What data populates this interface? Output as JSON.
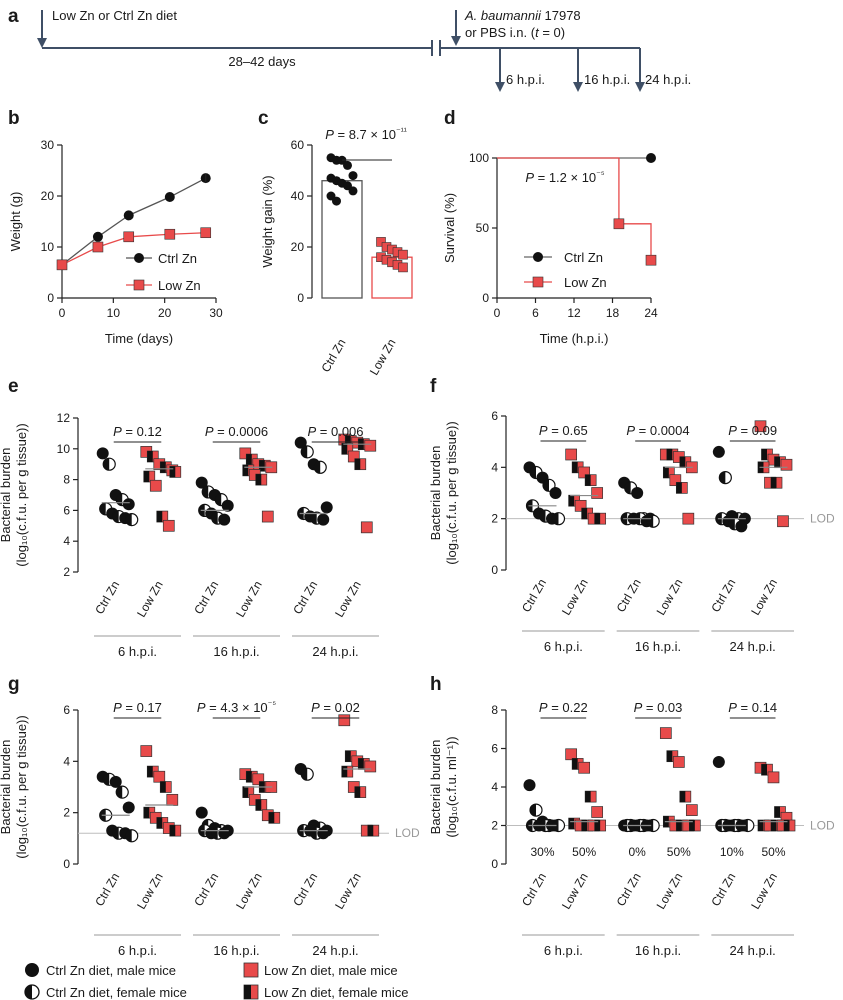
{
  "colors": {
    "ctrl": "#111111",
    "low": "#e84a4a",
    "grey": "#bdbdbd",
    "timeline": "#3f4f66",
    "lod_text": "#999999"
  },
  "panel_a": {
    "label": "a",
    "diet": "Low Zn or Ctrl Zn diet",
    "duration": "28–42 days",
    "infection_species": "A. baumannii",
    "infection_strain": " 17978",
    "infection_line2": "or PBS i.n. (",
    "infection_t": "t",
    "infection_end": " = 0)",
    "timepoints": [
      "6 h.p.i.",
      "16 h.p.i.",
      "24 h.p.i."
    ]
  },
  "groups": [
    "6 h.p.i.",
    "16 h.p.i.",
    "24 h.p.i."
  ],
  "xcats": [
    "Ctrl Zn",
    "Low Zn"
  ],
  "lod_label": "LOD",
  "legend": {
    "ctrl_male": "Ctrl Zn diet, male mice",
    "ctrl_female": "Ctrl Zn diet, female mice",
    "low_male": "Low Zn diet, male mice",
    "low_female": "Low Zn diet, female mice"
  },
  "chart_data": [
    {
      "panel": "b",
      "type": "line",
      "xlabel": "Time (days)",
      "ylabel": "Weight (g)",
      "xlim": [
        0,
        30
      ],
      "ylim": [
        0,
        30
      ],
      "xticks": [
        0,
        10,
        20,
        30
      ],
      "yticks": [
        0,
        10,
        20,
        30
      ],
      "series": [
        {
          "name": "Ctrl Zn",
          "x": [
            0,
            7,
            13,
            21,
            28
          ],
          "y": [
            6.5,
            12,
            16.2,
            19.8,
            23.5
          ]
        },
        {
          "name": "Low Zn",
          "x": [
            0,
            7,
            13,
            21,
            28
          ],
          "y": [
            6.5,
            10,
            12,
            12.5,
            12.8
          ]
        }
      ]
    },
    {
      "panel": "c",
      "type": "bar",
      "ylabel": "Weight gain (%)",
      "ylim": [
        0,
        60
      ],
      "yticks": [
        0,
        20,
        40,
        60
      ],
      "categories": [
        "Ctrl Zn",
        "Low Zn"
      ],
      "values": [
        46,
        16
      ],
      "pvalue": "P = 8.7 × 10⁻¹¹",
      "points": [
        [
          55,
          54,
          54,
          52,
          48,
          47,
          46,
          45,
          44,
          42,
          40,
          38
        ],
        [
          22,
          20,
          19,
          18,
          17,
          16,
          15,
          14,
          13,
          12
        ]
      ]
    },
    {
      "panel": "d",
      "type": "line",
      "xlabel": "Time (h.p.i.)",
      "ylabel": "Survival (%)",
      "xlim": [
        0,
        24
      ],
      "ylim": [
        0,
        100
      ],
      "xticks": [
        0,
        6,
        12,
        18,
        24
      ],
      "yticks": [
        0,
        50,
        100
      ],
      "pvalue": "P = 1.2 × 10⁻⁵",
      "series": [
        {
          "name": "Ctrl Zn",
          "x": [
            24
          ],
          "y": [
            100
          ]
        },
        {
          "name": "Low Zn",
          "x": [
            19,
            24
          ],
          "y": [
            53,
            27
          ]
        }
      ]
    },
    {
      "panel": "e",
      "type": "scatter",
      "ylabel": "Bacterial burden",
      "ylabel2": "(log₁₀(c.f.u. per g tissue))",
      "ylim": [
        2,
        12
      ],
      "yticks": [
        2,
        4,
        6,
        8,
        10,
        12
      ],
      "lod": null,
      "pvalues": [
        "P = 0.12",
        "P = 0.0006",
        "P = 0.006"
      ],
      "medians": [
        [
          6.5,
          8.7
        ],
        [
          6.0,
          8.8
        ],
        [
          5.8,
          10.3
        ]
      ],
      "points": [
        {
          "ctrl": [
            9.7,
            9.0,
            7.0,
            6.7,
            6.4,
            6.1,
            5.8,
            5.6,
            5.5,
            5.4
          ],
          "low": [
            9.8,
            9.5,
            9.0,
            8.8,
            8.6,
            8.2,
            7.6,
            5.6,
            5.0,
            8.5
          ]
        },
        {
          "ctrl": [
            7.8,
            7.2,
            7.0,
            6.7,
            6.3,
            6.0,
            5.8,
            5.5,
            5.4
          ],
          "low": [
            9.7,
            9.3,
            9.0,
            8.9,
            8.8,
            8.6,
            8.3,
            8.0,
            5.6
          ]
        },
        {
          "ctrl": [
            10.4,
            9.8,
            9.0,
            8.8,
            6.2,
            5.8,
            5.6,
            5.5,
            5.4
          ],
          "low": [
            10.6,
            10.5,
            10.4,
            10.3,
            10.2,
            10.0,
            9.5,
            9.0,
            4.9
          ]
        }
      ]
    },
    {
      "panel": "f",
      "type": "scatter",
      "ylabel": "Bacterial burden",
      "ylabel2": "(log₁₀(c.f.u. per g tissue))",
      "ylim": [
        0,
        6
      ],
      "yticks": [
        0,
        2,
        4,
        6
      ],
      "lod": 2,
      "pvalues": [
        "P = 0.65",
        "P = 0.0004",
        "P = 0.09"
      ],
      "medians": [
        [
          2.5,
          2.9
        ],
        [
          2.0,
          4.0
        ],
        [
          2.0,
          4.0
        ]
      ],
      "points": [
        {
          "ctrl": [
            4.0,
            3.8,
            3.6,
            3.3,
            3.0,
            2.5,
            2.2,
            2.1,
            2.0,
            2.0
          ],
          "low": [
            4.5,
            4.0,
            3.8,
            3.5,
            3.0,
            2.7,
            2.5,
            2.2,
            2.0,
            2.0
          ]
        },
        {
          "ctrl": [
            3.4,
            3.2,
            3.0,
            2.0,
            2.0,
            2.0,
            2.0,
            2.0,
            1.9,
            1.9
          ],
          "low": [
            4.5,
            4.5,
            4.4,
            4.2,
            4.0,
            3.8,
            3.5,
            3.2,
            2.0
          ]
        },
        {
          "ctrl": [
            4.6,
            3.6,
            2.1,
            2.0,
            2.0,
            2.0,
            1.9,
            1.8,
            1.7
          ],
          "low": [
            5.6,
            4.5,
            4.3,
            4.2,
            4.1,
            4.0,
            3.4,
            3.4,
            1.9
          ]
        }
      ]
    },
    {
      "panel": "g",
      "type": "scatter",
      "ylabel": "Bacterial burden",
      "ylabel2": "(log₁₀(c.f.u. per g tissue))",
      "ylim": [
        0,
        6
      ],
      "yticks": [
        0,
        2,
        4,
        6
      ],
      "lod": 1.2,
      "pvalues": [
        "P = 0.17",
        "P = 4.3 × 10⁻⁵",
        "P = 0.02"
      ],
      "medians": [
        [
          1.9,
          2.3
        ],
        [
          1.3,
          3.0
        ],
        [
          1.3,
          3.7
        ]
      ],
      "points": [
        {
          "ctrl": [
            3.4,
            3.3,
            3.2,
            2.8,
            2.2,
            1.9,
            1.3,
            1.2,
            1.2,
            1.1
          ],
          "low": [
            4.4,
            3.6,
            3.4,
            3.0,
            2.5,
            2.0,
            1.8,
            1.6,
            1.4,
            1.3
          ]
        },
        {
          "ctrl": [
            2.0,
            1.5,
            1.4,
            1.3,
            1.3,
            1.3,
            1.2,
            1.2,
            1.2
          ],
          "low": [
            3.5,
            3.4,
            3.3,
            3.0,
            3.0,
            2.8,
            2.5,
            2.3,
            1.9,
            1.8
          ]
        },
        {
          "ctrl": [
            3.7,
            3.5,
            1.5,
            1.4,
            1.3,
            1.3,
            1.3,
            1.2,
            1.2
          ],
          "low": [
            5.6,
            4.2,
            4.0,
            3.9,
            3.8,
            3.6,
            3.0,
            2.8,
            1.3,
            1.3
          ]
        }
      ]
    },
    {
      "panel": "h",
      "type": "scatter",
      "ylabel": "Bacterial burden",
      "ylabel2": "(log₁₀(c.f.u. ml⁻¹))",
      "ylim": [
        0,
        8
      ],
      "yticks": [
        0,
        2,
        4,
        6,
        8
      ],
      "lod": 2,
      "pvalues": [
        "P = 0.22",
        "P = 0.03",
        "P = 0.14"
      ],
      "percents": [
        [
          "30%",
          "50%"
        ],
        [
          "0%",
          "50%"
        ],
        [
          "10%",
          "50%"
        ]
      ],
      "medians": [
        [
          2.0,
          2.2
        ],
        [
          2.0,
          2.2
        ],
        [
          2.0,
          2.2
        ]
      ],
      "points": [
        {
          "ctrl": [
            4.1,
            2.8,
            2.2,
            2.0,
            2.0,
            2.0,
            2.0,
            2.0,
            2.0,
            2.0
          ],
          "low": [
            5.7,
            5.2,
            5.0,
            3.5,
            2.7,
            2.1,
            2.0,
            2.0,
            2.0,
            2.0
          ]
        },
        {
          "ctrl": [
            2.0,
            2.0,
            2.0,
            2.0,
            2.0,
            2.0,
            2.0,
            2.0,
            2.0,
            2.0
          ],
          "low": [
            6.8,
            5.6,
            5.3,
            3.5,
            2.8,
            2.2,
            2.0,
            2.0,
            2.0,
            2.0
          ]
        },
        {
          "ctrl": [
            5.3,
            2.0,
            2.0,
            2.0,
            2.0,
            2.0,
            2.0,
            2.0,
            2.0,
            2.0
          ],
          "low": [
            5.0,
            4.9,
            4.5,
            2.7,
            2.4,
            2.0,
            2.0,
            2.0,
            2.0,
            2.0
          ]
        }
      ]
    }
  ]
}
